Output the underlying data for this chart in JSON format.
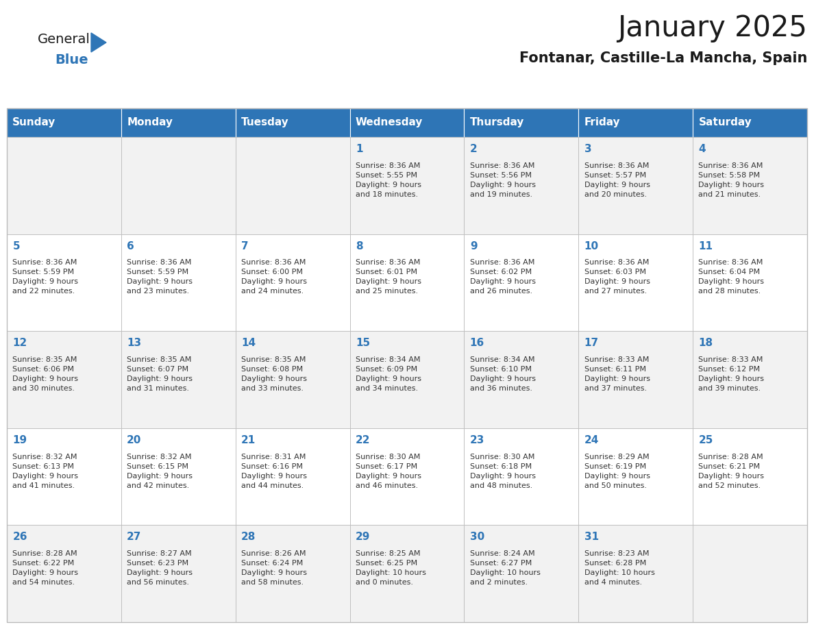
{
  "title": "January 2025",
  "subtitle": "Fontanar, Castille-La Mancha, Spain",
  "days_of_week": [
    "Sunday",
    "Monday",
    "Tuesday",
    "Wednesday",
    "Thursday",
    "Friday",
    "Saturday"
  ],
  "header_bg": "#2E75B6",
  "header_text": "#FFFFFF",
  "cell_bg_odd": "#F2F2F2",
  "cell_bg_even": "#FFFFFF",
  "grid_line_color": "#BBBBBB",
  "title_color": "#1A1A1A",
  "subtitle_color": "#1A1A1A",
  "day_num_color": "#2E75B6",
  "cell_text_color": "#333333",
  "logo_general_color": "#1A1A1A",
  "logo_blue_color": "#2E75B6",
  "weeks": [
    [
      {
        "day": null,
        "info": null
      },
      {
        "day": null,
        "info": null
      },
      {
        "day": null,
        "info": null
      },
      {
        "day": 1,
        "info": "Sunrise: 8:36 AM\nSunset: 5:55 PM\nDaylight: 9 hours\nand 18 minutes."
      },
      {
        "day": 2,
        "info": "Sunrise: 8:36 AM\nSunset: 5:56 PM\nDaylight: 9 hours\nand 19 minutes."
      },
      {
        "day": 3,
        "info": "Sunrise: 8:36 AM\nSunset: 5:57 PM\nDaylight: 9 hours\nand 20 minutes."
      },
      {
        "day": 4,
        "info": "Sunrise: 8:36 AM\nSunset: 5:58 PM\nDaylight: 9 hours\nand 21 minutes."
      }
    ],
    [
      {
        "day": 5,
        "info": "Sunrise: 8:36 AM\nSunset: 5:59 PM\nDaylight: 9 hours\nand 22 minutes."
      },
      {
        "day": 6,
        "info": "Sunrise: 8:36 AM\nSunset: 5:59 PM\nDaylight: 9 hours\nand 23 minutes."
      },
      {
        "day": 7,
        "info": "Sunrise: 8:36 AM\nSunset: 6:00 PM\nDaylight: 9 hours\nand 24 minutes."
      },
      {
        "day": 8,
        "info": "Sunrise: 8:36 AM\nSunset: 6:01 PM\nDaylight: 9 hours\nand 25 minutes."
      },
      {
        "day": 9,
        "info": "Sunrise: 8:36 AM\nSunset: 6:02 PM\nDaylight: 9 hours\nand 26 minutes."
      },
      {
        "day": 10,
        "info": "Sunrise: 8:36 AM\nSunset: 6:03 PM\nDaylight: 9 hours\nand 27 minutes."
      },
      {
        "day": 11,
        "info": "Sunrise: 8:36 AM\nSunset: 6:04 PM\nDaylight: 9 hours\nand 28 minutes."
      }
    ],
    [
      {
        "day": 12,
        "info": "Sunrise: 8:35 AM\nSunset: 6:06 PM\nDaylight: 9 hours\nand 30 minutes."
      },
      {
        "day": 13,
        "info": "Sunrise: 8:35 AM\nSunset: 6:07 PM\nDaylight: 9 hours\nand 31 minutes."
      },
      {
        "day": 14,
        "info": "Sunrise: 8:35 AM\nSunset: 6:08 PM\nDaylight: 9 hours\nand 33 minutes."
      },
      {
        "day": 15,
        "info": "Sunrise: 8:34 AM\nSunset: 6:09 PM\nDaylight: 9 hours\nand 34 minutes."
      },
      {
        "day": 16,
        "info": "Sunrise: 8:34 AM\nSunset: 6:10 PM\nDaylight: 9 hours\nand 36 minutes."
      },
      {
        "day": 17,
        "info": "Sunrise: 8:33 AM\nSunset: 6:11 PM\nDaylight: 9 hours\nand 37 minutes."
      },
      {
        "day": 18,
        "info": "Sunrise: 8:33 AM\nSunset: 6:12 PM\nDaylight: 9 hours\nand 39 minutes."
      }
    ],
    [
      {
        "day": 19,
        "info": "Sunrise: 8:32 AM\nSunset: 6:13 PM\nDaylight: 9 hours\nand 41 minutes."
      },
      {
        "day": 20,
        "info": "Sunrise: 8:32 AM\nSunset: 6:15 PM\nDaylight: 9 hours\nand 42 minutes."
      },
      {
        "day": 21,
        "info": "Sunrise: 8:31 AM\nSunset: 6:16 PM\nDaylight: 9 hours\nand 44 minutes."
      },
      {
        "day": 22,
        "info": "Sunrise: 8:30 AM\nSunset: 6:17 PM\nDaylight: 9 hours\nand 46 minutes."
      },
      {
        "day": 23,
        "info": "Sunrise: 8:30 AM\nSunset: 6:18 PM\nDaylight: 9 hours\nand 48 minutes."
      },
      {
        "day": 24,
        "info": "Sunrise: 8:29 AM\nSunset: 6:19 PM\nDaylight: 9 hours\nand 50 minutes."
      },
      {
        "day": 25,
        "info": "Sunrise: 8:28 AM\nSunset: 6:21 PM\nDaylight: 9 hours\nand 52 minutes."
      }
    ],
    [
      {
        "day": 26,
        "info": "Sunrise: 8:28 AM\nSunset: 6:22 PM\nDaylight: 9 hours\nand 54 minutes."
      },
      {
        "day": 27,
        "info": "Sunrise: 8:27 AM\nSunset: 6:23 PM\nDaylight: 9 hours\nand 56 minutes."
      },
      {
        "day": 28,
        "info": "Sunrise: 8:26 AM\nSunset: 6:24 PM\nDaylight: 9 hours\nand 58 minutes."
      },
      {
        "day": 29,
        "info": "Sunrise: 8:25 AM\nSunset: 6:25 PM\nDaylight: 10 hours\nand 0 minutes."
      },
      {
        "day": 30,
        "info": "Sunrise: 8:24 AM\nSunset: 6:27 PM\nDaylight: 10 hours\nand 2 minutes."
      },
      {
        "day": 31,
        "info": "Sunrise: 8:23 AM\nSunset: 6:28 PM\nDaylight: 10 hours\nand 4 minutes."
      },
      {
        "day": null,
        "info": null
      }
    ]
  ]
}
